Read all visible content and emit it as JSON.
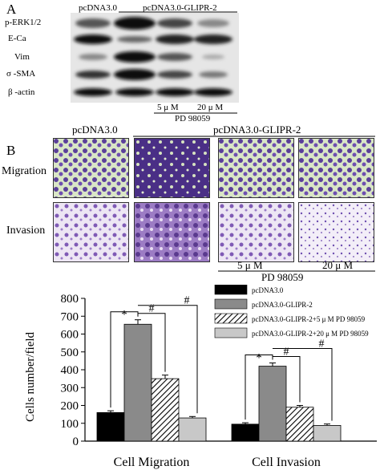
{
  "panel_a": {
    "letter": "A",
    "col_header_left": "pcDNA3.0",
    "col_header_right": "pcDNA3.0-GLIPR-2",
    "rows": [
      "p-ERK1/2",
      "E-Ca",
      "Vim",
      "σ -SMA",
      "β -actin"
    ],
    "dose_1": "5 μ M",
    "dose_2": "20 μ M",
    "inhibitor": "PD 98059"
  },
  "panel_b": {
    "letter": "B",
    "col_header_left": "pcDNA3.0",
    "col_header_right": "pcDNA3.0-GLIPR-2",
    "row_1": "Migration",
    "row_2": "Invasion",
    "dose_1": "5 μ M",
    "dose_2": "20 μ M",
    "inhibitor": "PD 98059"
  },
  "chart_data": {
    "type": "bar",
    "ylabel": "Cells number/field",
    "ylim": [
      0,
      800
    ],
    "yticks": [
      0,
      100,
      200,
      300,
      400,
      500,
      600,
      700,
      800
    ],
    "categories": [
      "Cell Migration",
      "Cell Invasion"
    ],
    "series": [
      {
        "name": "pcDNA3.0",
        "values": [
          160,
          95
        ],
        "errors": [
          10,
          8
        ],
        "fill": "black"
      },
      {
        "name": "pcDNA3.0-GLIPR-2",
        "values": [
          655,
          420
        ],
        "errors": [
          25,
          18
        ],
        "fill": "gray"
      },
      {
        "name": "pcDNA3.0-GLIPR-2+5  μ M PD 98059",
        "values": [
          350,
          190
        ],
        "errors": [
          20,
          10
        ],
        "fill": "hatch"
      },
      {
        "name": "pcDNA3.0-GLIPR-2+20  μ M PD 98059",
        "values": [
          130,
          88
        ],
        "errors": [
          8,
          8
        ],
        "fill": "lightgray"
      }
    ],
    "annotations": [
      "*",
      "#",
      "#"
    ],
    "legend_position": "top-right",
    "grid": false
  },
  "colors": {
    "black_bar": "#000000",
    "gray_bar": "#8a8a8a",
    "light_bar": "#c8c8c8",
    "stain_purple": "#5b3f9a",
    "stain_bg": "#d8e8c4"
  }
}
